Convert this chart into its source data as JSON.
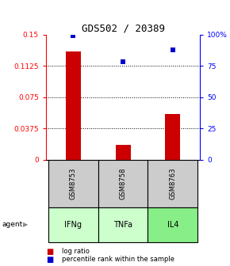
{
  "title": "GDS502 / 20389",
  "samples": [
    "GSM8753",
    "GSM8758",
    "GSM8763"
  ],
  "agents": [
    "IFNg",
    "TNFa",
    "IL4"
  ],
  "log_ratios": [
    0.13,
    0.018,
    0.055
  ],
  "percentile_ranks": [
    99,
    78,
    88
  ],
  "ylim_left": [
    0,
    0.15
  ],
  "ylim_right": [
    0,
    100
  ],
  "yticks_left": [
    0,
    0.0375,
    0.075,
    0.1125,
    0.15
  ],
  "yticks_right": [
    0,
    25,
    50,
    75,
    100
  ],
  "ytick_labels_left": [
    "0",
    "0.0375",
    "0.075",
    "0.1125",
    "0.15"
  ],
  "ytick_labels_right": [
    "0",
    "25",
    "50",
    "75",
    "100%"
  ],
  "bar_color": "#cc0000",
  "dot_color": "#0000cc",
  "agent_colors": [
    "#ccffcc",
    "#ccffcc",
    "#88ee88"
  ],
  "sample_box_color": "#cccccc",
  "legend_bar_label": "log ratio",
  "legend_dot_label": "percentile rank within the sample",
  "agent_label": "agent",
  "x_positions": [
    0,
    1,
    2
  ],
  "bar_width": 0.3
}
